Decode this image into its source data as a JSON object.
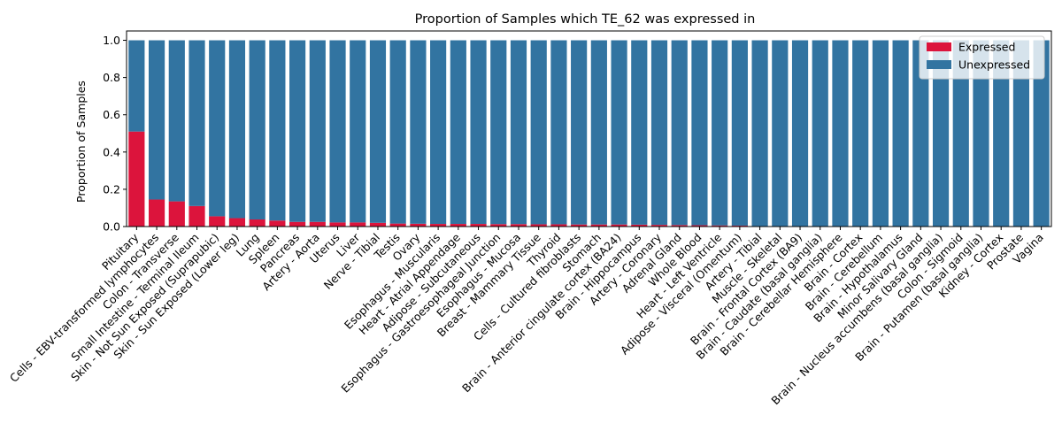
{
  "chart_data": {
    "type": "bar",
    "stacked": true,
    "title": "Proportion of Samples which TE_62 was expressed in",
    "xlabel": "",
    "ylabel": "Proportion of Samples",
    "ylim": [
      0,
      1.05
    ],
    "yticks": [
      "0.0",
      "0.2",
      "0.4",
      "0.6",
      "0.8",
      "1.0"
    ],
    "ytick_values": [
      0,
      0.2,
      0.4,
      0.6,
      0.8,
      1.0
    ],
    "grid": false,
    "legend_position": "top-right",
    "categories": [
      "Pituitary",
      "Cells - EBV-transformed lymphocytes",
      "Colon - Transverse",
      "Small Intestine - Terminal Ileum",
      "Skin - Not Sun Exposed (Suprapubic)",
      "Skin - Sun Exposed (Lower leg)",
      "Lung",
      "Spleen",
      "Pancreas",
      "Artery - Aorta",
      "Uterus",
      "Liver",
      "Nerve - Tibial",
      "Testis",
      "Ovary",
      "Esophagus - Muscularis",
      "Heart - Atrial Appendage",
      "Adipose - Subcutaneous",
      "Esophagus - Gastroesophageal Junction",
      "Esophagus - Mucosa",
      "Breast - Mammary Tissue",
      "Thyroid",
      "Cells - Cultured fibroblasts",
      "Stomach",
      "Brain - Anterior cingulate cortex (BA24)",
      "Brain - Hippocampus",
      "Artery - Coronary",
      "Adrenal Gland",
      "Whole Blood",
      "Heart - Left Ventricle",
      "Adipose - Visceral (Omentum)",
      "Artery - Tibial",
      "Muscle - Skeletal",
      "Brain - Frontal Cortex (BA9)",
      "Brain - Caudate (basal ganglia)",
      "Brain - Cerebellar Hemisphere",
      "Brain - Cortex",
      "Brain - Cerebellum",
      "Brain - Hypothalamus",
      "Minor Salivary Gland",
      "Brain - Nucleus accumbens (basal ganglia)",
      "Colon - Sigmoid",
      "Brain - Putamen (basal ganglia)",
      "Kidney - Cortex",
      "Prostate",
      "Vagina"
    ],
    "series": [
      {
        "name": "Expressed",
        "color": "#dc143c",
        "values": [
          0.51,
          0.145,
          0.135,
          0.11,
          0.055,
          0.045,
          0.038,
          0.032,
          0.025,
          0.025,
          0.022,
          0.022,
          0.02,
          0.016,
          0.015,
          0.014,
          0.014,
          0.014,
          0.013,
          0.013,
          0.012,
          0.012,
          0.011,
          0.011,
          0.011,
          0.01,
          0.009,
          0.008,
          0.007,
          0.006,
          0.005,
          0,
          0,
          0,
          0,
          0,
          0,
          0,
          0,
          0,
          0,
          0,
          0,
          0,
          0,
          0
        ]
      },
      {
        "name": "Unexpressed",
        "color": "#3274a1",
        "values": [
          0.49,
          0.855,
          0.865,
          0.89,
          0.945,
          0.955,
          0.962,
          0.968,
          0.975,
          0.975,
          0.978,
          0.978,
          0.98,
          0.984,
          0.985,
          0.986,
          0.986,
          0.986,
          0.987,
          0.987,
          0.988,
          0.988,
          0.989,
          0.989,
          0.989,
          0.99,
          0.991,
          0.992,
          0.993,
          0.994,
          0.995,
          1,
          1,
          1,
          1,
          1,
          1,
          1,
          1,
          1,
          1,
          1,
          1,
          1,
          1,
          1
        ]
      }
    ]
  }
}
